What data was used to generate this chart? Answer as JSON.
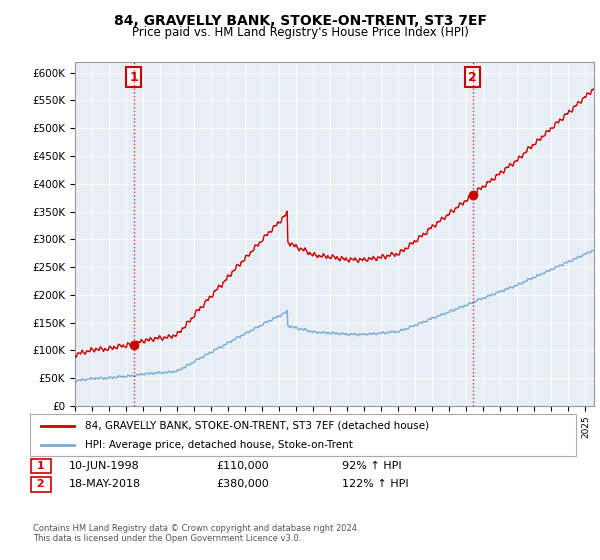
{
  "title": "84, GRAVELLY BANK, STOKE-ON-TRENT, ST3 7EF",
  "subtitle": "Price paid vs. HM Land Registry's House Price Index (HPI)",
  "xlim_start": 1995.0,
  "xlim_end": 2025.5,
  "ylim": [
    0,
    620000
  ],
  "yticks": [
    0,
    50000,
    100000,
    150000,
    200000,
    250000,
    300000,
    350000,
    400000,
    450000,
    500000,
    550000,
    600000
  ],
  "ytick_labels": [
    "£0",
    "£50K",
    "£100K",
    "£150K",
    "£200K",
    "£250K",
    "£300K",
    "£350K",
    "£400K",
    "£450K",
    "£500K",
    "£550K",
    "£600K"
  ],
  "sale1_year": 1998.44,
  "sale1_price": 110000,
  "sale1_label": "1",
  "sale1_date": "10-JUN-1998",
  "sale1_pct": "92%",
  "sale2_year": 2018.38,
  "sale2_price": 380000,
  "sale2_label": "2",
  "sale2_date": "18-MAY-2018",
  "sale2_pct": "122%",
  "hpi_color": "#7aaad0",
  "sale_color": "#cc0000",
  "vline_color": "#cc0000",
  "plot_bg_color": "#e8eef5",
  "legend_label1": "84, GRAVELLY BANK, STOKE-ON-TRENT, ST3 7EF (detached house)",
  "legend_label2": "HPI: Average price, detached house, Stoke-on-Trent",
  "footer": "Contains HM Land Registry data © Crown copyright and database right 2024.\nThis data is licensed under the Open Government Licence v3.0.",
  "background_color": "#ffffff",
  "grid_color": "#ffffff"
}
